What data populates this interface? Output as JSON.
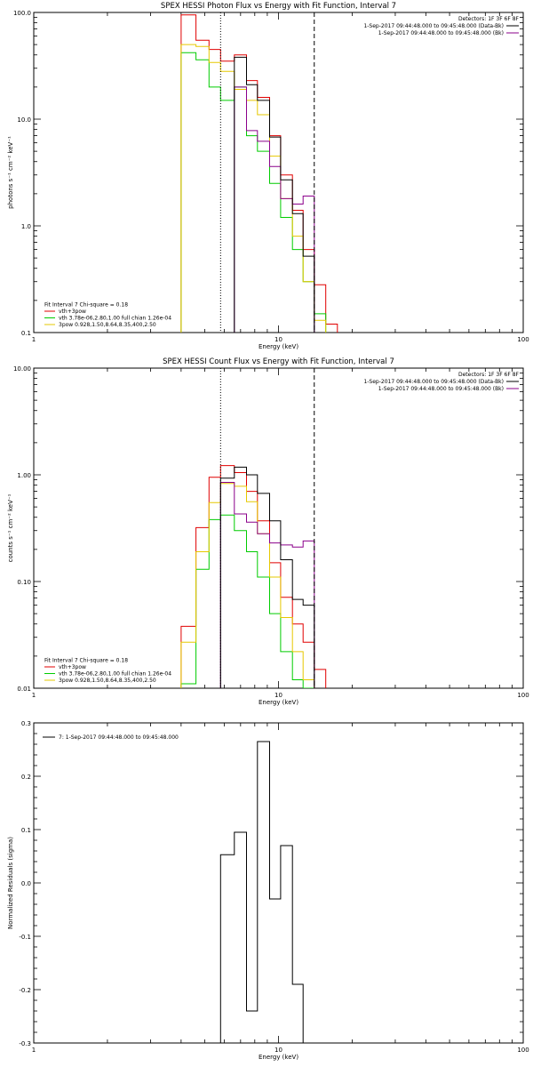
{
  "colors": {
    "data": "#000000",
    "background": "#8b008b",
    "fit_total": "#e00000",
    "thermal": "#00cc00",
    "power_law": "#e6c800",
    "axes": "#000000"
  },
  "chart_data": [
    {
      "type": "line",
      "title": "SPEX HESSI Photon Flux vs Energy with Fit Function, Interval 7",
      "xlabel": "Energy (keV)",
      "ylabel": "photons s⁻¹ cm⁻² keV⁻¹",
      "xscale": "log",
      "yscale": "log",
      "xlim": [
        1,
        100
      ],
      "ylim": [
        0.1,
        100
      ],
      "x_ticks": [
        "1",
        "10",
        "100"
      ],
      "y_ticks": [
        "0.1",
        "1.0",
        "10.0",
        "100.0"
      ],
      "vlines": [
        {
          "x": 5.8,
          "style": "dotted"
        },
        {
          "x": 14,
          "style": "dashed"
        }
      ],
      "legend_top_right": [
        {
          "text": "Detectors: 1F 3F 6F 8F",
          "color": "none"
        },
        {
          "text": "1-Sep-2017 09:44:48.000 to 09:45:48.000 (Data-Bk)",
          "color": "data"
        },
        {
          "text": "1-Sep-2017 09:44:48.000 to 09:45:48.000 (Bk)",
          "color": "background"
        }
      ],
      "legend_bottom_left": [
        {
          "text": "Fit Interval 7   Chi-square = 0.18",
          "color": "none"
        },
        {
          "text": "vth+3pow",
          "color": "fit_total"
        },
        {
          "text": "vth 3.78e-06,2.80,1.00  full chian 1.26e-04",
          "color": "thermal"
        },
        {
          "text": "3pow 0.928,1.50,8.64,8.35,400,2.50",
          "color": "power_law"
        }
      ],
      "bin_edges": [
        4,
        4.6,
        5.2,
        5.8,
        6.6,
        7.4,
        8.2,
        9.2,
        10.2,
        11.4,
        12.6,
        14,
        15.6,
        17.4
      ],
      "series": [
        {
          "color": "fit_total",
          "values": [
            95,
            55,
            45,
            35,
            40,
            23,
            16,
            7,
            3,
            1.4,
            0.6,
            0.28,
            0.12
          ]
        },
        {
          "color": "thermal",
          "values": [
            42,
            36,
            20,
            15,
            20,
            7,
            5,
            2.5,
            1.2,
            0.6,
            0.3,
            0.15,
            0.08
          ]
        },
        {
          "color": "power_law",
          "values": [
            50,
            48,
            34,
            28,
            19,
            15,
            11,
            4.5,
            1.8,
            0.8,
            0.3,
            0.13,
            0.04
          ]
        },
        {
          "color": "background",
          "values": [
            null,
            null,
            null,
            null,
            20,
            7.8,
            6.2,
            3.6,
            1.8,
            1.6,
            1.9,
            null,
            null
          ]
        },
        {
          "color": "data",
          "values": [
            null,
            null,
            null,
            null,
            38,
            21,
            15,
            6.8,
            2.7,
            1.3,
            0.52,
            null,
            null
          ]
        }
      ]
    },
    {
      "type": "line",
      "title": "SPEX HESSI Count Flux vs Energy with Fit Function, Interval 7",
      "xlabel": "Energy (keV)",
      "ylabel": "counts s⁻¹ cm⁻² keV⁻¹",
      "xscale": "log",
      "yscale": "log",
      "xlim": [
        1,
        100
      ],
      "ylim": [
        0.01,
        10
      ],
      "x_ticks": [
        "1",
        "10",
        "100"
      ],
      "y_ticks": [
        "0.01",
        "0.10",
        "1.00",
        "10.00"
      ],
      "vlines": [
        {
          "x": 5.8,
          "style": "dotted"
        },
        {
          "x": 14,
          "style": "dashed"
        }
      ],
      "legend_top_right": [
        {
          "text": "Detectors: 1F 3F 6F 8F",
          "color": "none"
        },
        {
          "text": "1-Sep-2017 09:44:48.000 to 09:45:48.000 (Data-Bk)",
          "color": "data"
        },
        {
          "text": "1-Sep-2017 09:44:48.000 to 09:45:48.000 (Bk)",
          "color": "background"
        }
      ],
      "legend_bottom_left": [
        {
          "text": "Fit Interval 7   Chi-square = 0.18",
          "color": "none"
        },
        {
          "text": "vth+3pow",
          "color": "fit_total"
        },
        {
          "text": "vth 3.78e-06,2.80,1.00  full chian 1.26e-04",
          "color": "thermal"
        },
        {
          "text": "3pow 0.928,1.50,8.64,8.35,400,2.50",
          "color": "power_law"
        }
      ],
      "bin_edges": [
        4,
        4.6,
        5.2,
        5.8,
        6.6,
        7.4,
        8.2,
        9.2,
        10.2,
        11.4,
        12.6,
        14,
        15.6,
        17.4
      ],
      "series": [
        {
          "color": "fit_total",
          "values": [
            0.038,
            0.32,
            0.95,
            1.22,
            1.05,
            0.7,
            0.37,
            0.15,
            0.071,
            0.04,
            0.027,
            0.015,
            null
          ]
        },
        {
          "color": "thermal",
          "values": [
            0.011,
            0.13,
            0.38,
            0.42,
            0.3,
            0.19,
            0.11,
            0.05,
            0.022,
            0.012,
            0.01,
            null,
            null
          ]
        },
        {
          "color": "power_law",
          "values": [
            0.027,
            0.19,
            0.55,
            0.83,
            0.78,
            0.56,
            0.28,
            0.11,
            0.046,
            0.022,
            0.012,
            null,
            null
          ]
        },
        {
          "color": "background",
          "values": [
            null,
            null,
            null,
            0.85,
            0.43,
            0.36,
            0.28,
            0.23,
            0.22,
            0.21,
            0.24,
            null,
            null
          ]
        },
        {
          "color": "data",
          "values": [
            null,
            null,
            null,
            0.93,
            1.18,
            1.0,
            0.67,
            0.37,
            0.16,
            0.068,
            0.06,
            null,
            null
          ]
        }
      ]
    },
    {
      "type": "line",
      "xlabel": "Energy (keV)",
      "ylabel": "Normalized Residuals (sigma)",
      "xscale": "log",
      "yscale": "linear",
      "xlim": [
        1,
        100
      ],
      "ylim": [
        -0.3,
        0.3
      ],
      "x_ticks": [
        "1",
        "10",
        "100"
      ],
      "y_ticks": [
        "-0.3",
        "-0.2",
        "-0.1",
        "0.0",
        "0.1",
        "0.2",
        "0.3"
      ],
      "legend_top_left": [
        {
          "text": "7: 1-Sep-2017 09:44:48.000 to 09:45:48.000",
          "color": "data"
        }
      ],
      "bin_edges": [
        5.8,
        6.6,
        7.4,
        8.2,
        9.2,
        10.2,
        11.4,
        12.6,
        14
      ],
      "series": [
        {
          "color": "data",
          "values": [
            0.053,
            0.095,
            -0.24,
            0.265,
            -0.03,
            0.07,
            -0.19,
            -0.3
          ]
        }
      ]
    }
  ]
}
